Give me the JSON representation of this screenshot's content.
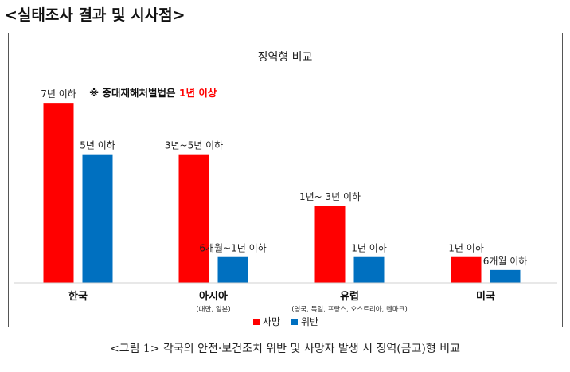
{
  "page": {
    "heading": "<실태조사 결과 및 시사점>",
    "caption": "<그림 1> 각국의 안전·보건조치 위반 및 사망자 발생 시 징역(금고)형 비교"
  },
  "colors": {
    "death": "#ff0000",
    "violation": "#0070c0"
  },
  "chart_data": {
    "type": "bar",
    "title": "징역형 비교",
    "categories": [
      "한국",
      "아시아",
      "유럽",
      "미국"
    ],
    "category_sublabels": [
      "",
      "(대만, 일본)",
      "(영국, 독일, 프랑스, 오스트리아, 덴마크)",
      ""
    ],
    "series": [
      {
        "name": "사망",
        "values": [
          7,
          5,
          3,
          1
        ],
        "labels": [
          "7년 이하",
          "3년~5년 이하",
          "1년~ 3년 이하",
          "1년 이하"
        ]
      },
      {
        "name": "위반",
        "values": [
          5,
          1,
          1,
          0.5
        ],
        "labels": [
          "5년 이하",
          "6개월~1년 이하",
          "1년 이하",
          "6개월 이하"
        ]
      }
    ],
    "annotation": {
      "prefix": "※ 중대재해처벌법은 ",
      "highlight": "1년 이상"
    },
    "ylim": [
      0,
      7.5
    ],
    "legend_position": "bottom-center",
    "grid": false
  }
}
